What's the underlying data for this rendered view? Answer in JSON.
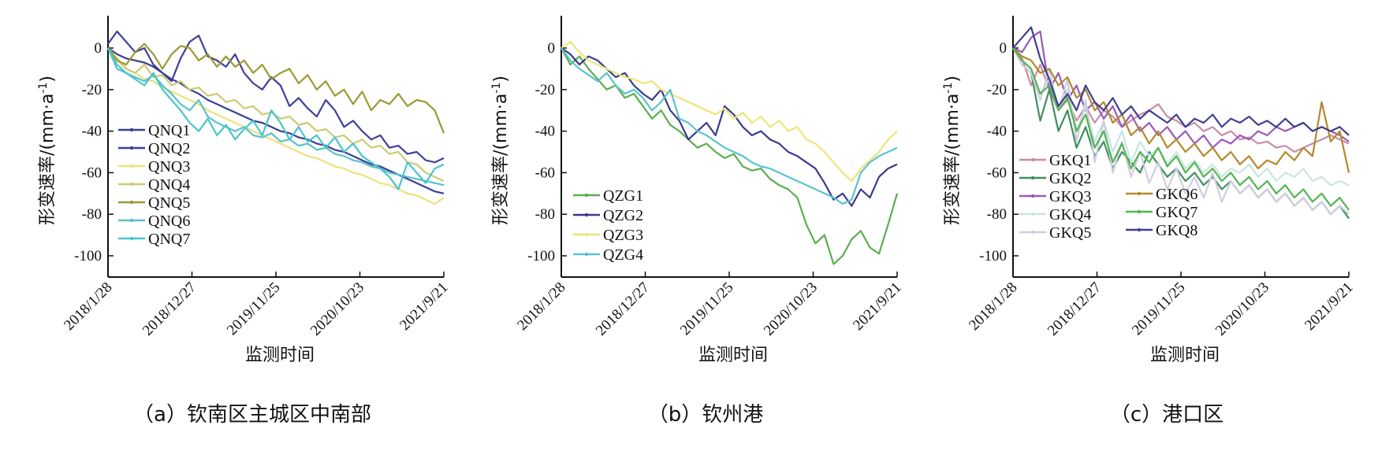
{
  "chart_data": [
    {
      "type": "line",
      "caption": "（a）钦南区主城区中南部",
      "xlabel": "监测时间",
      "ylabel": "形变速率/(mm·a-1)",
      "ylabel_main": "形变速率/(mm·a",
      "ylabel_sup": "-1",
      "ylabel_close": ")",
      "xticks": [
        "2018/1/28",
        "2018/12/27",
        "2019/11/25",
        "2020/10/23",
        "2021/9/21"
      ],
      "yticks": [
        "0",
        "-20",
        "-40",
        "-60",
        "-80",
        "-100"
      ],
      "ylim": [
        -110,
        15
      ],
      "legend_position": "lower-left",
      "series": [
        {
          "name": "QNQ1",
          "color": "#3a3f95",
          "values": [
            0,
            -3,
            -5,
            -6,
            -7,
            -9,
            -12,
            -15,
            -17,
            -20,
            -22,
            -25,
            -27,
            -29,
            -31,
            -33,
            -35,
            -36,
            -38,
            -40,
            -41,
            -43,
            -44,
            -46,
            -47,
            -49,
            -50,
            -52,
            -54,
            -56,
            -57,
            -59,
            -61,
            -63,
            -65,
            -67,
            -69,
            -70
          ]
        },
        {
          "name": "QNQ2",
          "color": "#40409a",
          "values": [
            2,
            8,
            3,
            -2,
            0,
            -8,
            -12,
            -16,
            -5,
            3,
            6,
            -4,
            -6,
            -9,
            -3,
            -12,
            -17,
            -20,
            -14,
            -18,
            -28,
            -24,
            -29,
            -33,
            -25,
            -30,
            -38,
            -35,
            -40,
            -44,
            -42,
            -48,
            -47,
            -51,
            -50,
            -54,
            -55,
            -53
          ]
        },
        {
          "name": "QNQ3",
          "color": "#ece27a",
          "values": [
            0,
            -6,
            -10,
            -12,
            -15,
            -16,
            -19,
            -21,
            -23,
            -25,
            -27,
            -30,
            -32,
            -34,
            -36,
            -38,
            -40,
            -42,
            -44,
            -46,
            -48,
            -50,
            -52,
            -53,
            -55,
            -57,
            -58,
            -60,
            -61,
            -63,
            -65,
            -66,
            -68,
            -70,
            -71,
            -73,
            -75,
            -72
          ]
        },
        {
          "name": "QNQ4",
          "color": "#cccb72",
          "values": [
            0,
            -5,
            -10,
            -12,
            -8,
            -14,
            -13,
            -18,
            -16,
            -20,
            -19,
            -23,
            -22,
            -26,
            -25,
            -29,
            -28,
            -32,
            -31,
            -34,
            -33,
            -37,
            -36,
            -40,
            -39,
            -43,
            -42,
            -46,
            -44,
            -48,
            -47,
            -51,
            -50,
            -55,
            -56,
            -60,
            -62,
            -64
          ]
        },
        {
          "name": "QNQ5",
          "color": "#9a9a34",
          "values": [
            0,
            -6,
            -8,
            -2,
            2,
            -3,
            -10,
            -3,
            1,
            0,
            -6,
            -3,
            -9,
            -4,
            -9,
            -6,
            -12,
            -8,
            -15,
            -12,
            -10,
            -17,
            -13,
            -20,
            -16,
            -23,
            -20,
            -27,
            -21,
            -30,
            -25,
            -27,
            -22,
            -28,
            -25,
            -26,
            -30,
            -41
          ]
        },
        {
          "name": "QNQ6",
          "color": "#59c1c8",
          "values": [
            0,
            -8,
            -12,
            -14,
            -16,
            -13,
            -18,
            -22,
            -27,
            -30,
            -25,
            -33,
            -36,
            -38,
            -40,
            -38,
            -42,
            -43,
            -41,
            -45,
            -44,
            -47,
            -46,
            -49,
            -48,
            -51,
            -52,
            -54,
            -55,
            -57,
            -58,
            -60,
            -61,
            -62,
            -63,
            -64,
            -65,
            -66
          ]
        },
        {
          "name": "QNQ7",
          "color": "#49c4d0",
          "values": [
            0,
            -10,
            -12,
            -15,
            -18,
            -12,
            -20,
            -25,
            -30,
            -36,
            -40,
            -34,
            -42,
            -37,
            -44,
            -39,
            -35,
            -42,
            -30,
            -36,
            -44,
            -38,
            -45,
            -42,
            -48,
            -43,
            -50,
            -46,
            -52,
            -55,
            -58,
            -62,
            -68,
            -55,
            -60,
            -65,
            -58,
            -56
          ]
        }
      ]
    },
    {
      "type": "line",
      "caption": "（b）钦州港",
      "xlabel": "监测时间",
      "ylabel": "形变速率/(mm·a-1)",
      "ylabel_main": "形变速率/(mm·a",
      "ylabel_sup": "-1",
      "ylabel_close": ")",
      "xticks": [
        "2018/1/28",
        "2018/12/27",
        "2019/11/25",
        "2020/10/23",
        "2021/9/21"
      ],
      "yticks": [
        "0",
        "-20",
        "-40",
        "-60",
        "-80",
        "-100"
      ],
      "ylim": [
        -110,
        15
      ],
      "legend_position": "lower-left",
      "series": [
        {
          "name": "QZG1",
          "color": "#5aae4e",
          "values": [
            0,
            -8,
            -4,
            -10,
            -15,
            -20,
            -18,
            -24,
            -22,
            -28,
            -34,
            -30,
            -37,
            -40,
            -44,
            -48,
            -46,
            -50,
            -53,
            -51,
            -57,
            -59,
            -58,
            -63,
            -66,
            -68,
            -72,
            -85,
            -94,
            -90,
            -104,
            -100,
            -92,
            -88,
            -96,
            -99,
            -85,
            -70
          ]
        },
        {
          "name": "QZG2",
          "color": "#3a3a8c",
          "values": [
            0,
            -3,
            -8,
            -4,
            -6,
            -10,
            -14,
            -12,
            -18,
            -22,
            -25,
            -20,
            -30,
            -35,
            -44,
            -40,
            -36,
            -42,
            -28,
            -32,
            -38,
            -42,
            -40,
            -44,
            -46,
            -50,
            -52,
            -55,
            -58,
            -65,
            -73,
            -70,
            -76,
            -68,
            -72,
            -62,
            -58,
            -56
          ]
        },
        {
          "name": "QZG3",
          "color": "#ece676",
          "values": [
            0,
            3,
            -2,
            -6,
            -8,
            -10,
            -12,
            -14,
            -15,
            -17,
            -16,
            -20,
            -22,
            -24,
            -26,
            -28,
            -30,
            -32,
            -29,
            -34,
            -31,
            -36,
            -33,
            -38,
            -35,
            -40,
            -38,
            -44,
            -46,
            -50,
            -55,
            -60,
            -64,
            -58,
            -54,
            -50,
            -44,
            -40
          ]
        },
        {
          "name": "QZG4",
          "color": "#5bc3cf",
          "values": [
            0,
            -6,
            -10,
            -13,
            -16,
            -12,
            -18,
            -22,
            -20,
            -24,
            -30,
            -26,
            -20,
            -34,
            -36,
            -40,
            -42,
            -45,
            -48,
            -50,
            -52,
            -55,
            -57,
            -58,
            -60,
            -62,
            -64,
            -66,
            -68,
            -70,
            -72,
            -75,
            -73,
            -60,
            -55,
            -52,
            -50,
            -48
          ]
        }
      ]
    },
    {
      "type": "line",
      "caption": "（c）港口区",
      "xlabel": "监测时间",
      "ylabel": "形变速率/(mm·a-1)",
      "ylabel_main": "形变速率/(mm·a",
      "ylabel_sup": "-1",
      "ylabel_close": ")",
      "xticks": [
        "2018/1/28",
        "2018/12/27",
        "2019/11/25",
        "2020/10/23",
        "2021/9/21"
      ],
      "yticks": [
        "0",
        "-20",
        "-40",
        "-60",
        "-80",
        "-100"
      ],
      "ylim": [
        -110,
        15
      ],
      "legend_position": "lower-left",
      "series": [
        {
          "name": "GKQ1",
          "color": "#c98ca6",
          "values": [
            0,
            -5,
            -18,
            -8,
            -20,
            -30,
            -25,
            -35,
            -28,
            -36,
            -30,
            -33,
            -38,
            -35,
            -32,
            -30,
            -27,
            -33,
            -35,
            -38,
            -36,
            -40,
            -38,
            -42,
            -40,
            -44,
            -43,
            -46,
            -45,
            -48,
            -47,
            -50,
            -48,
            -46,
            -44,
            -42,
            -44,
            -46
          ]
        },
        {
          "name": "GKQ2",
          "color": "#3f8f5f",
          "values": [
            0,
            -8,
            -12,
            -35,
            -20,
            -40,
            -30,
            -48,
            -38,
            -52,
            -45,
            -58,
            -50,
            -55,
            -60,
            -50,
            -56,
            -62,
            -58,
            -64,
            -60,
            -66,
            -62,
            -68,
            -64,
            -70,
            -66,
            -72,
            -68,
            -74,
            -70,
            -76,
            -72,
            -78,
            -74,
            -80,
            -76,
            -82
          ]
        },
        {
          "name": "GKQ3",
          "color": "#9a5ab8",
          "values": [
            0,
            -2,
            5,
            8,
            -20,
            -12,
            -25,
            -18,
            -30,
            -26,
            -34,
            -28,
            -38,
            -32,
            -40,
            -36,
            -42,
            -38,
            -44,
            -40,
            -46,
            -42,
            -48,
            -44,
            -46,
            -42,
            -44,
            -40,
            -42,
            -38,
            -40,
            -38,
            -36,
            -40,
            -38,
            -40,
            -42,
            -45
          ]
        },
        {
          "name": "GKQ4",
          "color": "#c7e6e2",
          "values": [
            0,
            -6,
            -10,
            -22,
            -15,
            -30,
            -20,
            -40,
            -28,
            -45,
            -35,
            -50,
            -40,
            -55,
            -45,
            -52,
            -48,
            -56,
            -50,
            -58,
            -54,
            -60,
            -56,
            -62,
            -58,
            -60,
            -56,
            -62,
            -58,
            -64,
            -60,
            -62,
            -58,
            -64,
            -62,
            -66,
            -64,
            -66
          ]
        },
        {
          "name": "GKQ5",
          "color": "#d2cde0",
          "values": [
            0,
            -8,
            -12,
            -25,
            -10,
            -30,
            -15,
            -45,
            -25,
            -55,
            -35,
            -60,
            -45,
            -62,
            -50,
            -65,
            -55,
            -68,
            -58,
            -70,
            -62,
            -72,
            -60,
            -74,
            -64,
            -70,
            -66,
            -72,
            -68,
            -74,
            -70,
            -76,
            -72,
            -78,
            -74,
            -80,
            -76,
            -80
          ]
        },
        {
          "name": "GKQ6",
          "color": "#b38a2c",
          "values": [
            0,
            -4,
            -6,
            -12,
            -10,
            -18,
            -14,
            -24,
            -20,
            -30,
            -26,
            -36,
            -32,
            -42,
            -38,
            -46,
            -40,
            -48,
            -44,
            -50,
            -46,
            -52,
            -48,
            -54,
            -50,
            -56,
            -52,
            -58,
            -54,
            -56,
            -50,
            -54,
            -48,
            -52,
            -26,
            -45,
            -40,
            -60
          ]
        },
        {
          "name": "GKQ7",
          "color": "#52b552",
          "values": [
            0,
            -6,
            -10,
            -22,
            -18,
            -30,
            -24,
            -40,
            -32,
            -48,
            -40,
            -55,
            -46,
            -58,
            -50,
            -55,
            -48,
            -57,
            -52,
            -60,
            -55,
            -62,
            -58,
            -64,
            -60,
            -66,
            -62,
            -68,
            -64,
            -70,
            -66,
            -72,
            -68,
            -74,
            -70,
            -76,
            -72,
            -78
          ]
        },
        {
          "name": "GKQ8",
          "color": "#3f3f92",
          "values": [
            0,
            5,
            10,
            -5,
            -15,
            -28,
            -22,
            -30,
            -18,
            -26,
            -30,
            -24,
            -32,
            -28,
            -34,
            -30,
            -33,
            -36,
            -32,
            -38,
            -34,
            -36,
            -32,
            -38,
            -34,
            -36,
            -33,
            -37,
            -35,
            -38,
            -34,
            -38,
            -36,
            -40,
            -38,
            -40,
            -38,
            -42
          ]
        }
      ]
    }
  ]
}
